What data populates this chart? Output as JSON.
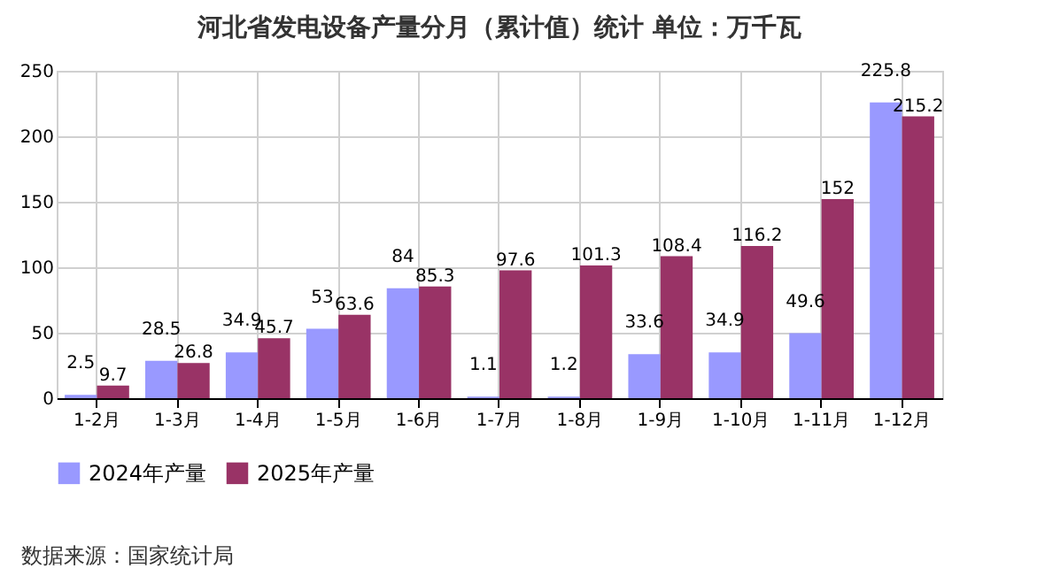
{
  "chart_data": {
    "type": "bar",
    "title": "河北省发电设备产量分月（累计值）统计 单位：万千瓦",
    "categories": [
      "1-2月",
      "1-3月",
      "1-4月",
      "1-5月",
      "1-6月",
      "1-7月",
      "1-8月",
      "1-9月",
      "1-10月",
      "1-11月",
      "1-12月"
    ],
    "series": [
      {
        "name": "2024年产量",
        "color": "#9999ff",
        "values": [
          2.5,
          28.5,
          34.9,
          53,
          84,
          1.1,
          1.2,
          33.6,
          34.9,
          49.6,
          225.8
        ]
      },
      {
        "name": "2025年产量",
        "color": "#993366",
        "values": [
          9.7,
          26.8,
          45.7,
          63.6,
          85.3,
          97.6,
          101.3,
          108.4,
          116.2,
          152,
          215.2
        ]
      }
    ],
    "ylim": [
      0,
      250
    ],
    "yticks": [
      0,
      50,
      100,
      150,
      200,
      250
    ],
    "grid": true,
    "legend": "bottom",
    "data_labels": true,
    "annotations": [
      "数据来源：国家统计局"
    ]
  }
}
